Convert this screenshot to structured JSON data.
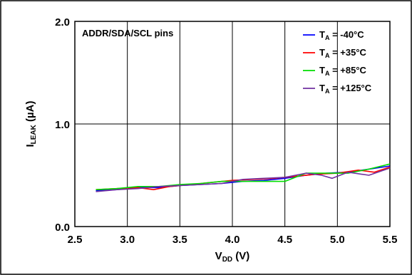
{
  "chart_data": {
    "type": "line",
    "grid": true,
    "legend_placement": "top-right",
    "annotation": "ADDR/SDA/SCL pins",
    "xlabel": {
      "main": "V",
      "sub": "DD",
      "unit": " (V)"
    },
    "ylabel": {
      "main": "I",
      "sub": "LEAK",
      "unit": " (µA)"
    },
    "xlim": [
      2.5,
      5.5
    ],
    "ylim": [
      0.0,
      2.0
    ],
    "x_ticks": [
      "2.5",
      "3.0",
      "3.5",
      "4.0",
      "4.5",
      "5.0",
      "5.5"
    ],
    "y_ticks": [
      "0.0",
      "1.0",
      "2.0"
    ],
    "series": [
      {
        "name_main": "T",
        "name_sub": "A",
        "name_rest": " = -40°C",
        "color": "#0000ff",
        "x": [
          2.7,
          2.9,
          3.1,
          3.3,
          3.5,
          3.7,
          3.9,
          4.1,
          4.3,
          4.5,
          4.7,
          4.9,
          5.1,
          5.3,
          5.5
        ],
        "y": [
          0.35,
          0.36,
          0.38,
          0.38,
          0.4,
          0.41,
          0.42,
          0.44,
          0.45,
          0.47,
          0.5,
          0.52,
          0.53,
          0.56,
          0.59
        ]
      },
      {
        "name_main": "T",
        "name_sub": "A",
        "name_rest": " = +35°C",
        "color": "#ff0000",
        "x": [
          2.7,
          2.9,
          3.1,
          3.25,
          3.4,
          3.6,
          3.8,
          4.0,
          4.2,
          4.4,
          4.6,
          4.8,
          5.0,
          5.2,
          5.35,
          5.5
        ],
        "y": [
          0.36,
          0.37,
          0.38,
          0.36,
          0.39,
          0.41,
          0.43,
          0.45,
          0.46,
          0.47,
          0.49,
          0.51,
          0.52,
          0.55,
          0.53,
          0.58
        ]
      },
      {
        "name_main": "T",
        "name_sub": "A",
        "name_rest": " = +85°C",
        "color": "#00dd00",
        "x": [
          2.7,
          2.9,
          3.1,
          3.3,
          3.5,
          3.7,
          3.9,
          4.1,
          4.3,
          4.5,
          4.7,
          4.9,
          5.1,
          5.3,
          5.5
        ],
        "y": [
          0.36,
          0.37,
          0.39,
          0.39,
          0.41,
          0.42,
          0.44,
          0.44,
          0.44,
          0.44,
          0.52,
          0.52,
          0.52,
          0.56,
          0.61
        ]
      },
      {
        "name_main": "T",
        "name_sub": "A",
        "name_rest": " = +125°C",
        "color": "#7030a0",
        "x": [
          2.7,
          2.9,
          3.1,
          3.3,
          3.5,
          3.7,
          3.9,
          4.1,
          4.3,
          4.5,
          4.7,
          4.85,
          4.95,
          5.1,
          5.3,
          5.5
        ],
        "y": [
          0.34,
          0.36,
          0.37,
          0.39,
          0.4,
          0.41,
          0.42,
          0.46,
          0.47,
          0.48,
          0.52,
          0.5,
          0.47,
          0.53,
          0.5,
          0.57
        ]
      }
    ]
  }
}
